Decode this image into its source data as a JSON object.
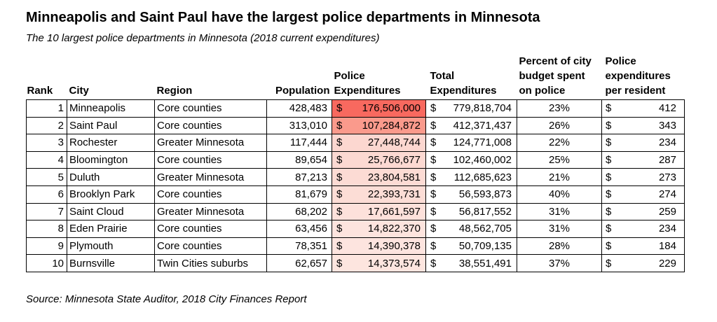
{
  "page": {
    "title": "Minneapolis and Saint Paul have the largest police departments in Minnesota",
    "subtitle": "The 10 largest police departments in Minnesota (2018 current expenditures)",
    "source": "Source: Minnesota State Auditor, 2018 City Finances Report"
  },
  "table": {
    "currency": "$",
    "headers": {
      "rank": "Rank",
      "city": "City",
      "region": "Region",
      "population": "Population",
      "police_expenditures": "Police\nExpenditures",
      "total_expenditures": "Total\nExpenditures",
      "percent_budget": "Percent of city\nbudget spent\non police",
      "per_resident": "Police\nexpenditures\nper resident"
    },
    "rows": [
      {
        "rank": "1",
        "city": "Minneapolis",
        "region": "Core counties",
        "population": "428,483",
        "police_exp": "176,506,000",
        "total_exp": "779,818,704",
        "pct_budget": "23%",
        "per_resident": "412",
        "police_fill": "#f8695f"
      },
      {
        "rank": "2",
        "city": "Saint Paul",
        "region": "Core counties",
        "population": "313,010",
        "police_exp": "107,284,872",
        "total_exp": "412,371,437",
        "pct_budget": "26%",
        "per_resident": "343",
        "police_fill": "#fa9a8c"
      },
      {
        "rank": "3",
        "city": "Rochester",
        "region": "Greater Minnesota",
        "population": "117,444",
        "police_exp": "27,448,744",
        "total_exp": "124,771,008",
        "pct_budget": "22%",
        "per_resident": "234",
        "police_fill": "#fcd7d0"
      },
      {
        "rank": "4",
        "city": "Bloomington",
        "region": "Core counties",
        "population": "89,654",
        "police_exp": "25,766,677",
        "total_exp": "102,460,002",
        "pct_budget": "25%",
        "per_resident": "287",
        "police_fill": "#fcd9d2"
      },
      {
        "rank": "5",
        "city": "Duluth",
        "region": "Greater Minnesota",
        "population": "87,213",
        "police_exp": "23,804,581",
        "total_exp": "112,685,623",
        "pct_budget": "21%",
        "per_resident": "273",
        "police_fill": "#fcdbd4"
      },
      {
        "rank": "6",
        "city": "Brooklyn Park",
        "region": "Core counties",
        "population": "81,679",
        "police_exp": "22,393,731",
        "total_exp": "56,593,873",
        "pct_budget": "40%",
        "per_resident": "274",
        "police_fill": "#fcddd6"
      },
      {
        "rank": "7",
        "city": "Saint Cloud",
        "region": "Greater Minnesota",
        "population": "68,202",
        "police_exp": "17,661,597",
        "total_exp": "56,817,552",
        "pct_budget": "31%",
        "per_resident": "259",
        "police_fill": "#fde1db"
      },
      {
        "rank": "8",
        "city": "Eden Prairie",
        "region": "Core counties",
        "population": "63,456",
        "police_exp": "14,822,370",
        "total_exp": "48,562,705",
        "pct_budget": "31%",
        "per_resident": "234",
        "police_fill": "#fde4de"
      },
      {
        "rank": "9",
        "city": "Plymouth",
        "region": "Core counties",
        "population": "78,351",
        "police_exp": "14,390,378",
        "total_exp": "50,709,135",
        "pct_budget": "28%",
        "per_resident": "184",
        "police_fill": "#fde4df"
      },
      {
        "rank": "10",
        "city": "Burnsville",
        "region": "Twin Cities suburbs",
        "population": "62,657",
        "police_exp": "14,373,574",
        "total_exp": "38,551,491",
        "pct_budget": "37%",
        "per_resident": "229",
        "police_fill": "#fde5df"
      }
    ]
  },
  "chart_data": {
    "type": "table",
    "title": "Minneapolis and Saint Paul have the largest police departments in Minnesota",
    "subtitle": "The 10 largest police departments in Minnesota (2018 current expenditures)",
    "source": "Source: Minnesota State Auditor, 2018 City Finances Report",
    "columns": [
      "Rank",
      "City",
      "Region",
      "Population",
      "Police Expenditures",
      "Total Expenditures",
      "Percent of city budget spent on police",
      "Police expenditures per resident"
    ],
    "units": {
      "police_expenditures": "USD",
      "total_expenditures": "USD",
      "percent_budget": "%",
      "per_resident": "USD"
    },
    "rows": [
      [
        1,
        "Minneapolis",
        "Core counties",
        428483,
        176506000,
        779818704,
        23,
        412
      ],
      [
        2,
        "Saint Paul",
        "Core counties",
        313010,
        107284872,
        412371437,
        26,
        343
      ],
      [
        3,
        "Rochester",
        "Greater Minnesota",
        117444,
        27448744,
        124771008,
        22,
        234
      ],
      [
        4,
        "Bloomington",
        "Core counties",
        89654,
        25766677,
        102460002,
        25,
        287
      ],
      [
        5,
        "Duluth",
        "Greater Minnesota",
        87213,
        23804581,
        112685623,
        21,
        273
      ],
      [
        6,
        "Brooklyn Park",
        "Core counties",
        81679,
        22393731,
        56593873,
        40,
        274
      ],
      [
        7,
        "Saint Cloud",
        "Greater Minnesota",
        68202,
        17661597,
        56817552,
        31,
        259
      ],
      [
        8,
        "Eden Prairie",
        "Core counties",
        63456,
        14822370,
        48562705,
        31,
        234
      ],
      [
        9,
        "Plymouth",
        "Core counties",
        78351,
        14390378,
        50709135,
        28,
        184
      ],
      [
        10,
        "Burnsville",
        "Twin Cities suburbs",
        62657,
        14373574,
        38551491,
        37,
        229
      ]
    ],
    "conditional_formatting": {
      "column": "Police Expenditures",
      "style": "red color scale, darker red = higher value",
      "max_color": "#f8695f",
      "min_color": "#fde5df"
    }
  }
}
